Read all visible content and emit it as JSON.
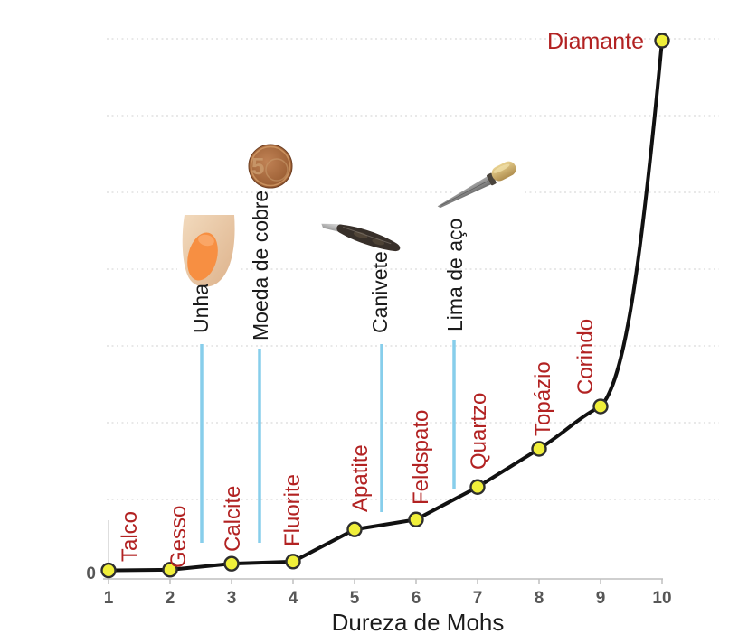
{
  "page": {
    "background": "#FFFFFF",
    "description_language": "pt"
  },
  "chart_data": {
    "type": "line",
    "title": "",
    "xlabel": "Dureza de Mohs",
    "ylabel": "",
    "y_axis_zero_label": "0",
    "x": [
      1,
      2,
      3,
      4,
      5,
      6,
      7,
      8,
      9,
      10
    ],
    "x_tick_labels": [
      "1",
      "2",
      "3",
      "4",
      "5",
      "6",
      "7",
      "8",
      "9",
      "10"
    ],
    "categories": [
      "Talco",
      "Gesso",
      "Calcite",
      "Fluorite",
      "Apatite",
      "Feldspato",
      "Quartzo",
      "Topázio",
      "Corindo",
      "Diamante"
    ],
    "values": [
      1,
      3,
      20,
      26,
      117,
      145,
      237,
      345,
      465,
      1500
    ],
    "xlim": [
      1,
      10
    ],
    "ylim": [
      0,
      1500
    ],
    "grid": "horizontal-dotted-light",
    "legend": "none",
    "reference_objects": [
      {
        "label": "Unha",
        "x": 2.5
      },
      {
        "label": "Moeda de cobre",
        "x": 3.5
      },
      {
        "label": "Canivete",
        "x": 5.5
      },
      {
        "label": "Lima de aço",
        "x": 6.6
      }
    ],
    "colors": {
      "line": "#111111",
      "marker_fill": "#F0EF3A",
      "marker_stroke": "#2E2E2E",
      "mineral_label": "#B22222",
      "reference_line": "#87CEEB",
      "reference_label": "#1A1A1A",
      "axis": "#BFBFBF",
      "tick_label": "#575757",
      "gridline": "#DBDBDB"
    }
  },
  "decor": {
    "coin_digit": "5"
  }
}
